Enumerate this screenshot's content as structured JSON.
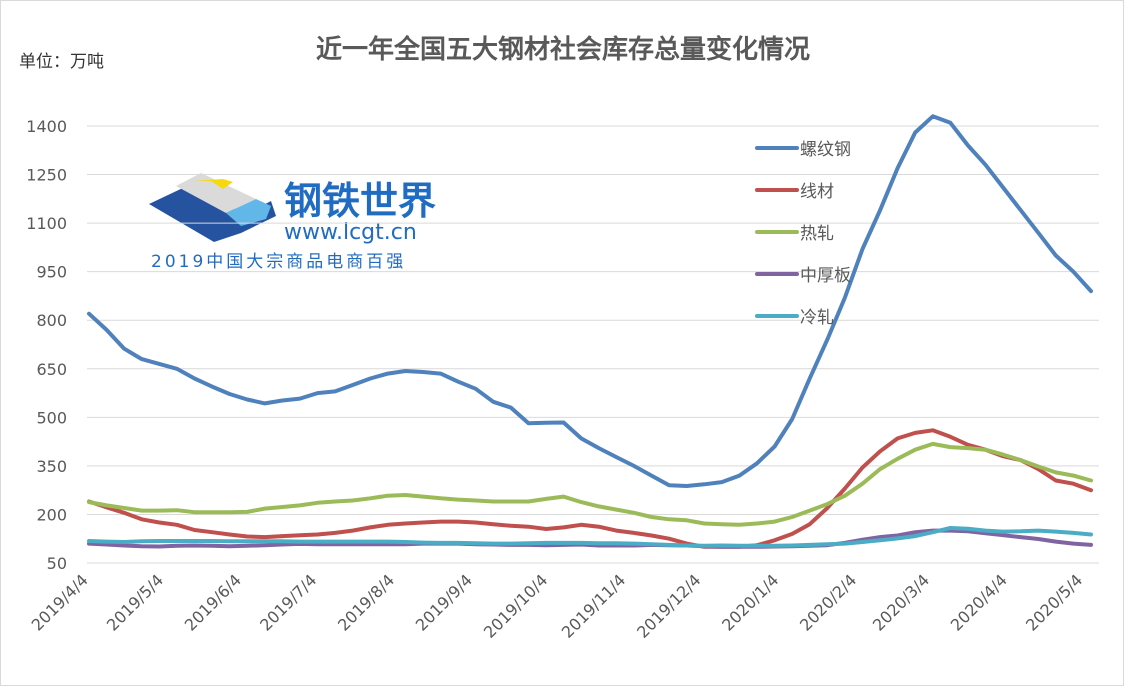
{
  "chart_data": {
    "type": "line",
    "title": "近一年全国五大钢材社会库存总量变化情况",
    "unit_label": "单位：万吨",
    "ylim": [
      50,
      1400
    ],
    "yticks": [
      1400,
      1250,
      1100,
      950,
      800,
      650,
      500,
      350,
      200,
      50
    ],
    "grid": true,
    "legend_position": "top-right",
    "x_start": "2019/4/4",
    "x_step_days": 7,
    "xtick_labels": [
      "2019/4/4",
      "2019/5/4",
      "2019/6/4",
      "2019/7/4",
      "2019/8/4",
      "2019/9/4",
      "2019/10/4",
      "2019/11/4",
      "2019/12/4",
      "2020/1/4",
      "2020/2/4",
      "2020/3/4",
      "2020/4/4",
      "2020/5/4"
    ],
    "series": [
      {
        "name": "螺纹钢",
        "color": "#4F81BD",
        "values": [
          820,
          770,
          712,
          680,
          665,
          650,
          620,
          595,
          572,
          555,
          543,
          552,
          558,
          575,
          580,
          600,
          620,
          635,
          643,
          640,
          635,
          610,
          588,
          548,
          530,
          482,
          483,
          484,
          435,
          405,
          377,
          350,
          320,
          290,
          288,
          293,
          300,
          320,
          358,
          410,
          495,
          620,
          740,
          870,
          1020,
          1140,
          1270,
          1380,
          1430,
          1410,
          1340,
          1280,
          1210,
          1140,
          1070,
          1000,
          950,
          890
        ]
      },
      {
        "name": "线材",
        "color": "#C0504D",
        "values": [
          240,
          222,
          205,
          185,
          175,
          168,
          152,
          145,
          138,
          132,
          130,
          133,
          136,
          138,
          143,
          150,
          160,
          168,
          172,
          175,
          178,
          178,
          175,
          170,
          165,
          162,
          155,
          160,
          168,
          162,
          150,
          143,
          135,
          125,
          110,
          100,
          100,
          100,
          105,
          120,
          140,
          170,
          220,
          280,
          345,
          395,
          435,
          452,
          460,
          440,
          415,
          400,
          380,
          368,
          340,
          305,
          295,
          275
        ]
      },
      {
        "name": "热轧",
        "color": "#9BBB59",
        "values": [
          238,
          228,
          220,
          212,
          212,
          213,
          207,
          207,
          207,
          208,
          218,
          223,
          228,
          236,
          240,
          243,
          250,
          258,
          260,
          255,
          250,
          246,
          243,
          240,
          240,
          240,
          248,
          255,
          238,
          225,
          215,
          205,
          192,
          185,
          182,
          172,
          170,
          168,
          172,
          178,
          192,
          212,
          232,
          258,
          295,
          340,
          372,
          400,
          418,
          408,
          405,
          400,
          385,
          368,
          348,
          330,
          320,
          305
        ]
      },
      {
        "name": "中厚板",
        "color": "#8064A2",
        "values": [
          110,
          107,
          104,
          102,
          101,
          103,
          104,
          103,
          102,
          103,
          105,
          107,
          109,
          108,
          108,
          108,
          108,
          108,
          108,
          110,
          110,
          110,
          108,
          107,
          106,
          106,
          105,
          106,
          107,
          104,
          104,
          104,
          106,
          105,
          104,
          102,
          100,
          100,
          100,
          101,
          102,
          103,
          105,
          112,
          122,
          130,
          135,
          145,
          150,
          150,
          148,
          142,
          136,
          130,
          124,
          116,
          110,
          106
        ]
      },
      {
        "name": "冷轧",
        "color": "#4BACC6",
        "values": [
          118,
          116,
          115,
          117,
          118,
          118,
          118,
          118,
          117,
          117,
          117,
          117,
          116,
          116,
          116,
          116,
          116,
          116,
          115,
          113,
          112,
          112,
          111,
          110,
          110,
          111,
          112,
          112,
          112,
          111,
          111,
          110,
          108,
          106,
          104,
          103,
          104,
          103,
          103,
          103,
          104,
          106,
          108,
          110,
          115,
          120,
          126,
          133,
          145,
          158,
          156,
          150,
          147,
          148,
          150,
          147,
          143,
          138
        ]
      }
    ]
  },
  "watermark": {
    "brand": "钢铁世界",
    "url": "www.lcgt.cn",
    "slogan": "2019中国大宗商品电商百强"
  }
}
